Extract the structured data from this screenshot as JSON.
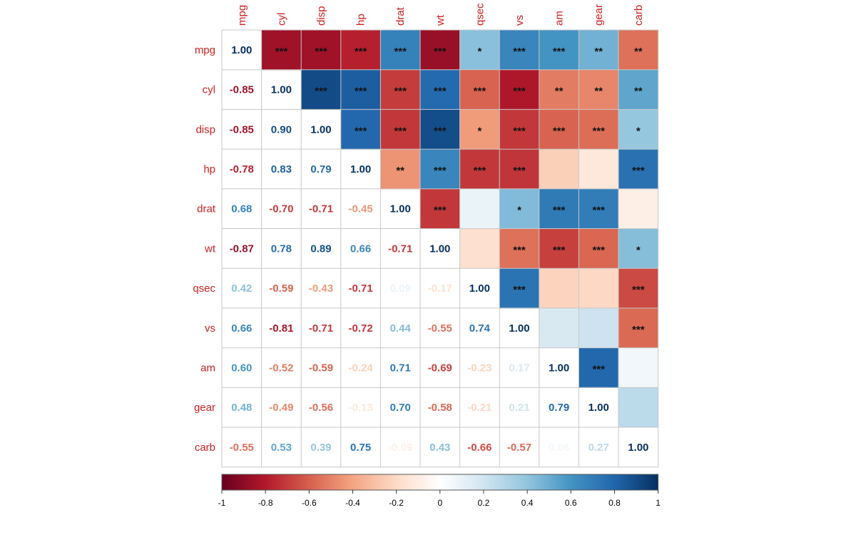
{
  "chart_data": {
    "type": "heatmap",
    "variables": [
      "mpg",
      "cyl",
      "disp",
      "hp",
      "drat",
      "wt",
      "qsec",
      "vs",
      "am",
      "gear",
      "carb"
    ],
    "lower_triangle": "coefficient",
    "upper_triangle": "significance",
    "matrix": [
      [
        1.0,
        -0.85,
        -0.85,
        -0.78,
        0.68,
        -0.87,
        0.42,
        0.66,
        0.6,
        0.48,
        -0.55
      ],
      [
        -0.85,
        1.0,
        0.9,
        0.83,
        -0.7,
        0.78,
        -0.59,
        -0.81,
        -0.52,
        -0.49,
        0.53
      ],
      [
        -0.85,
        0.9,
        1.0,
        0.79,
        -0.71,
        0.89,
        -0.43,
        -0.71,
        -0.59,
        -0.56,
        0.39
      ],
      [
        -0.78,
        0.83,
        0.79,
        1.0,
        -0.45,
        0.66,
        -0.71,
        -0.72,
        -0.24,
        -0.13,
        0.75
      ],
      [
        0.68,
        -0.7,
        -0.71,
        -0.45,
        1.0,
        -0.71,
        0.09,
        0.44,
        0.71,
        0.7,
        -0.09
      ],
      [
        -0.87,
        0.78,
        0.89,
        0.66,
        -0.71,
        1.0,
        -0.17,
        -0.55,
        -0.69,
        -0.58,
        0.43
      ],
      [
        0.42,
        -0.59,
        -0.43,
        -0.71,
        0.09,
        -0.17,
        1.0,
        0.74,
        -0.23,
        -0.21,
        -0.66
      ],
      [
        0.66,
        -0.81,
        -0.71,
        -0.72,
        0.44,
        -0.55,
        0.74,
        1.0,
        0.17,
        0.21,
        -0.57
      ],
      [
        0.6,
        -0.52,
        -0.59,
        -0.24,
        0.71,
        -0.69,
        -0.23,
        0.17,
        1.0,
        0.79,
        0.06
      ],
      [
        0.48,
        -0.49,
        -0.56,
        -0.13,
        0.7,
        -0.58,
        -0.21,
        0.21,
        0.79,
        1.0,
        0.27
      ],
      [
        -0.55,
        0.53,
        0.39,
        0.75,
        -0.09,
        0.43,
        -0.66,
        -0.57,
        0.06,
        0.27,
        1.0
      ]
    ],
    "significance": [
      [
        "",
        "***",
        "***",
        "***",
        "***",
        "***",
        "*",
        "***",
        "***",
        "**",
        "**"
      ],
      [
        "",
        "",
        "***",
        "***",
        "***",
        "***",
        "***",
        "***",
        "**",
        "**",
        "**"
      ],
      [
        "",
        "",
        "",
        "***",
        "***",
        "***",
        "*",
        "***",
        "***",
        "***",
        "*"
      ],
      [
        "",
        "",
        "",
        "",
        "**",
        "***",
        "***",
        "***",
        "",
        "",
        "***"
      ],
      [
        "",
        "",
        "",
        "",
        "",
        "***",
        "",
        "*",
        "***",
        "***",
        ""
      ],
      [
        "",
        "",
        "",
        "",
        "",
        "",
        "",
        "***",
        "***",
        "***",
        "*"
      ],
      [
        "",
        "",
        "",
        "",
        "",
        "",
        "",
        "***",
        "",
        "",
        "***"
      ],
      [
        "",
        "",
        "",
        "",
        "",
        "",
        "",
        "",
        "",
        "",
        "***"
      ],
      [
        "",
        "",
        "",
        "",
        "",
        "",
        "",
        "",
        "",
        "***",
        ""
      ],
      [
        "",
        "",
        "",
        "",
        "",
        "",
        "",
        "",
        "",
        "",
        ""
      ],
      [
        "",
        "",
        "",
        "",
        "",
        "",
        "",
        "",
        "",
        "",
        ""
      ]
    ],
    "colorbar": {
      "range": [
        -1,
        1
      ],
      "ticks": [
        "-1",
        "-0.8",
        "-0.6",
        "-0.4",
        "-0.2",
        "0",
        "0.2",
        "0.4",
        "0.6",
        "0.8",
        "1"
      ],
      "placement": "bottom"
    },
    "palette": [
      "#67001F",
      "#B2182B",
      "#D6604D",
      "#F4A582",
      "#FDDBC7",
      "#FFFFFF",
      "#D1E5F0",
      "#92C5DE",
      "#4393C3",
      "#2166AC",
      "#053061"
    ],
    "title": "",
    "xlabel": "",
    "ylabel": ""
  }
}
